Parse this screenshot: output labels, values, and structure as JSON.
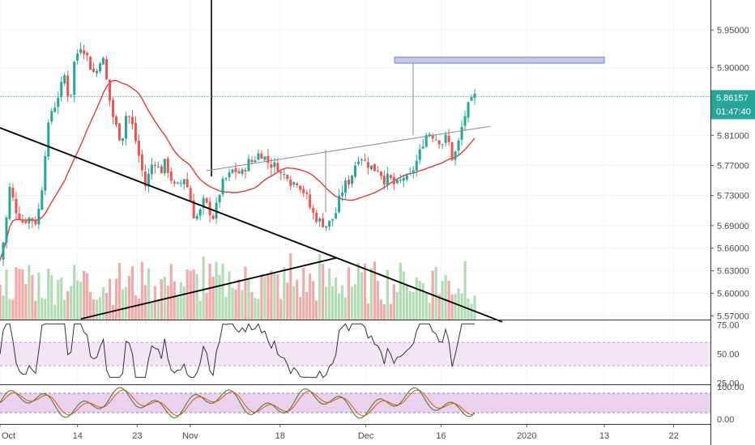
{
  "chart_data": {
    "type": "candlestick",
    "price_axis": {
      "ticks": [
        "5.95000",
        "5.90000",
        "5.81000",
        "5.77000",
        "5.73000",
        "5.69000",
        "5.66000",
        "5.63000",
        "5.60000",
        "5.57000"
      ],
      "tick_values": [
        5.95,
        5.9,
        5.81,
        5.77,
        5.73,
        5.69,
        5.66,
        5.63,
        5.6,
        5.57
      ],
      "range": [
        5.565,
        5.99
      ]
    },
    "current_price": {
      "label": "5.86157",
      "value": 5.86157,
      "countdown": "01:47:40",
      "color": "#26a69a"
    },
    "x_axis": {
      "labels": [
        "Oct",
        "14",
        "23",
        "Nov",
        "18",
        "Dec",
        "16",
        "2020",
        "13",
        "22"
      ],
      "positions_index": [
        0,
        95,
        168,
        233,
        343,
        448,
        540,
        645,
        740,
        825
      ],
      "total_slots": 870
    },
    "ohlc": {
      "count": 148,
      "anchor_closes": [
        [
          0,
          5.645
        ],
        [
          6,
          5.68
        ],
        [
          12,
          5.74
        ],
        [
          20,
          5.71
        ],
        [
          28,
          5.695
        ],
        [
          36,
          5.7
        ],
        [
          44,
          5.695
        ],
        [
          50,
          5.72
        ],
        [
          56,
          5.79
        ],
        [
          62,
          5.84
        ],
        [
          68,
          5.85
        ],
        [
          74,
          5.87
        ],
        [
          80,
          5.89
        ],
        [
          86,
          5.85
        ],
        [
          92,
          5.91
        ],
        [
          100,
          5.93
        ],
        [
          106,
          5.92
        ],
        [
          112,
          5.9
        ],
        [
          118,
          5.89
        ],
        [
          126,
          5.92
        ],
        [
          132,
          5.88
        ],
        [
          138,
          5.84
        ],
        [
          144,
          5.82
        ],
        [
          150,
          5.8
        ],
        [
          156,
          5.84
        ],
        [
          162,
          5.83
        ],
        [
          168,
          5.8
        ],
        [
          174,
          5.77
        ],
        [
          180,
          5.74
        ],
        [
          186,
          5.77
        ],
        [
          192,
          5.775
        ],
        [
          198,
          5.76
        ],
        [
          204,
          5.775
        ],
        [
          210,
          5.755
        ],
        [
          216,
          5.74
        ],
        [
          222,
          5.745
        ],
        [
          228,
          5.755
        ],
        [
          234,
          5.73
        ],
        [
          240,
          5.7
        ],
        [
          246,
          5.705
        ],
        [
          252,
          5.725
        ],
        [
          258,
          5.71
        ],
        [
          264,
          5.7
        ],
        [
          270,
          5.73
        ],
        [
          276,
          5.75
        ],
        [
          282,
          5.755
        ],
        [
          288,
          5.765
        ],
        [
          294,
          5.76
        ],
        [
          300,
          5.76
        ],
        [
          306,
          5.775
        ],
        [
          312,
          5.775
        ],
        [
          318,
          5.785
        ],
        [
          324,
          5.785
        ],
        [
          330,
          5.775
        ],
        [
          336,
          5.77
        ],
        [
          342,
          5.77
        ],
        [
          348,
          5.755
        ],
        [
          354,
          5.76
        ],
        [
          360,
          5.745
        ],
        [
          366,
          5.75
        ],
        [
          372,
          5.74
        ],
        [
          378,
          5.73
        ],
        [
          384,
          5.71
        ],
        [
          390,
          5.7
        ],
        [
          396,
          5.695
        ],
        [
          402,
          5.69
        ],
        [
          408,
          5.695
        ],
        [
          414,
          5.705
        ],
        [
          420,
          5.73
        ],
        [
          426,
          5.745
        ],
        [
          432,
          5.75
        ],
        [
          438,
          5.77
        ],
        [
          444,
          5.785
        ],
        [
          450,
          5.775
        ],
        [
          456,
          5.77
        ],
        [
          462,
          5.765
        ],
        [
          468,
          5.765
        ],
        [
          474,
          5.75
        ],
        [
          480,
          5.755
        ],
        [
          486,
          5.745
        ],
        [
          492,
          5.745
        ],
        [
          498,
          5.755
        ],
        [
          504,
          5.75
        ],
        [
          510,
          5.765
        ],
        [
          516,
          5.78
        ],
        [
          522,
          5.8
        ],
        [
          528,
          5.815
        ],
        [
          534,
          5.81
        ],
        [
          540,
          5.805
        ],
        [
          546,
          5.8
        ],
        [
          552,
          5.81
        ],
        [
          558,
          5.78
        ],
        [
          564,
          5.79
        ],
        [
          570,
          5.82
        ],
        [
          576,
          5.845
        ],
        [
          582,
          5.855
        ],
        [
          586,
          5.862
        ]
      ]
    },
    "volume_note": "green/red volume bars at bottom of price pane",
    "moving_average": {
      "color": "#e53935"
    },
    "trendlines": [
      {
        "kind": "descending",
        "from": [
          0,
          5.82
        ],
        "to": [
          620,
          5.562
        ]
      },
      {
        "kind": "ascending",
        "from": [
          100,
          5.566
        ],
        "to": [
          415,
          5.647
        ]
      },
      {
        "kind": "resistance",
        "from": [
          255,
          5.763
        ],
        "to": [
          605,
          5.822
        ]
      }
    ],
    "target_box": {
      "x1": 487,
      "x2": 746,
      "top": 5.914,
      "bottom": 5.906,
      "color": "#7986cb"
    },
    "rsi": {
      "ticks": [
        "75.00",
        "50.00",
        "25.00"
      ],
      "tick_values": [
        75,
        50,
        25
      ],
      "band": [
        40,
        60
      ],
      "range": [
        24,
        79
      ]
    },
    "stochastic": {
      "ticks": [
        "100.00",
        "0.00"
      ],
      "tick_values": [
        100,
        0
      ],
      "band": [
        20,
        80
      ],
      "range": [
        -15,
        105
      ]
    }
  }
}
